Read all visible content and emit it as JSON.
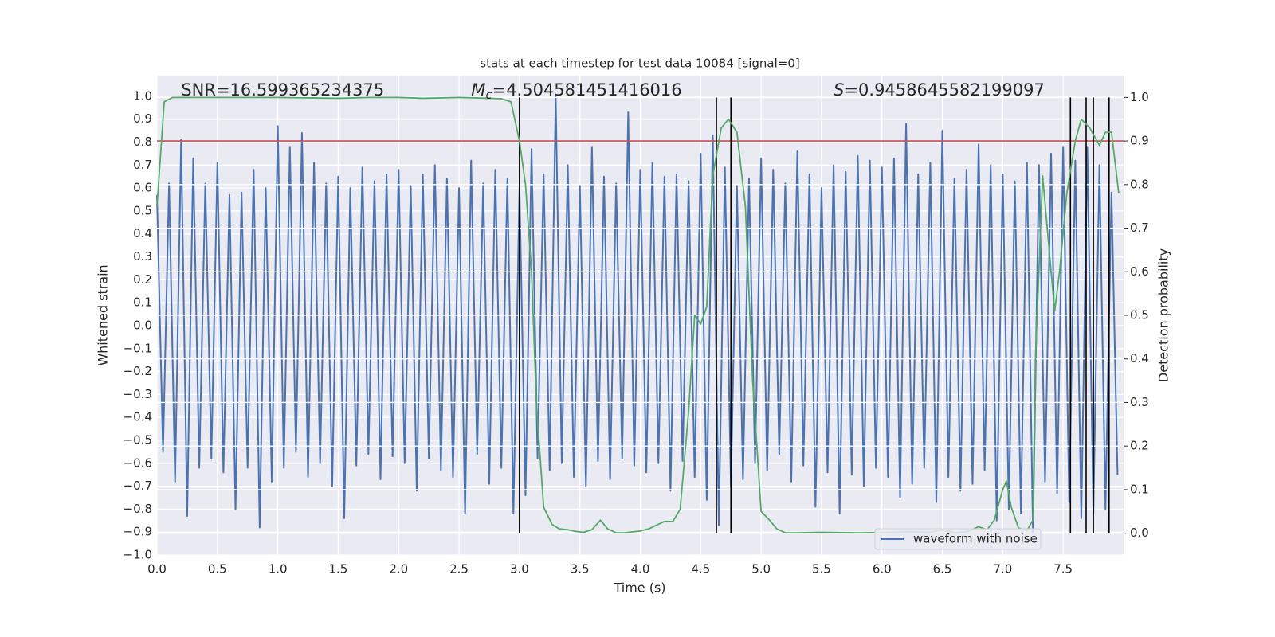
{
  "chart_data": {
    "type": "line",
    "title": "stats at each timestep for test data 10084 [signal=0]",
    "xlabel": "Time (s)",
    "ylabel": "Whitened strain",
    "y2label": "Detection probability",
    "annotations": [
      {
        "x": 0.2,
        "parts": [
          {
            "text": "SNR=16.599365234375"
          }
        ]
      },
      {
        "x": 2.6,
        "parts": [
          {
            "text": "M",
            "style": "italic"
          },
          {
            "text": "c",
            "style": "sub"
          },
          {
            "text": "=4.504581451416016"
          }
        ]
      },
      {
        "x": 5.6,
        "parts": [
          {
            "text": "S",
            "style": "italic"
          },
          {
            "text": "=0.9458645582199097"
          }
        ]
      }
    ],
    "xlim": [
      0,
      8
    ],
    "ylim": [
      -1.0,
      1.09
    ],
    "y2lim": [
      -0.05,
      1.05
    ],
    "xticks": [
      {
        "value": 0,
        "label": "0.0"
      },
      {
        "value": 0.5,
        "label": "0.5"
      },
      {
        "value": 1,
        "label": "1.0"
      },
      {
        "value": 1.5,
        "label": "1.5"
      },
      {
        "value": 2,
        "label": "2.0"
      },
      {
        "value": 2.5,
        "label": "2.5"
      },
      {
        "value": 3,
        "label": "3.0"
      },
      {
        "value": 3.5,
        "label": "3.5"
      },
      {
        "value": 4,
        "label": "4.0"
      },
      {
        "value": 4.5,
        "label": "4.5"
      },
      {
        "value": 5,
        "label": "5.0"
      },
      {
        "value": 5.5,
        "label": "5.5"
      },
      {
        "value": 6,
        "label": "6.0"
      },
      {
        "value": 6.5,
        "label": "6.5"
      },
      {
        "value": 7,
        "label": "7.0"
      },
      {
        "value": 7.5,
        "label": "7.5"
      }
    ],
    "yticks": [
      {
        "value": -1.0,
        "label": "−1.0"
      },
      {
        "value": -0.9,
        "label": "−0.9"
      },
      {
        "value": -0.8,
        "label": "−0.8"
      },
      {
        "value": -0.7,
        "label": "−0.7"
      },
      {
        "value": -0.6,
        "label": "−0.6"
      },
      {
        "value": -0.5,
        "label": "−0.5"
      },
      {
        "value": -0.4,
        "label": "−0.4"
      },
      {
        "value": -0.3,
        "label": "−0.3"
      },
      {
        "value": -0.2,
        "label": "−0.2"
      },
      {
        "value": -0.1,
        "label": "−0.1"
      },
      {
        "value": 0,
        "label": "0.0"
      },
      {
        "value": 0.1,
        "label": "0.1"
      },
      {
        "value": 0.2,
        "label": "0.2"
      },
      {
        "value": 0.3,
        "label": "0.3"
      },
      {
        "value": 0.4,
        "label": "0.4"
      },
      {
        "value": 0.5,
        "label": "0.5"
      },
      {
        "value": 0.6,
        "label": "0.6"
      },
      {
        "value": 0.7,
        "label": "0.7"
      },
      {
        "value": 0.8,
        "label": "0.8"
      },
      {
        "value": 0.9,
        "label": "0.9"
      },
      {
        "value": 1.0,
        "label": "1.0"
      }
    ],
    "y2ticks": [
      {
        "value": 0,
        "label": "0.0"
      },
      {
        "value": 0.1,
        "label": "0.1"
      },
      {
        "value": 0.2,
        "label": "0.2"
      },
      {
        "value": 0.3,
        "label": "0.3"
      },
      {
        "value": 0.4,
        "label": "0.4"
      },
      {
        "value": 0.5,
        "label": "0.5"
      },
      {
        "value": 0.6,
        "label": "0.6"
      },
      {
        "value": 0.7,
        "label": "0.7"
      },
      {
        "value": 0.8,
        "label": "0.8"
      },
      {
        "value": 0.9,
        "label": "0.9"
      },
      {
        "value": 1.0,
        "label": "1.0"
      }
    ],
    "grid": true,
    "legend": "lower right",
    "series": [
      {
        "name": "waveform with noise",
        "color": "#4c72b0",
        "x": [
          0,
          0.05,
          0.1,
          0.15,
          0.2,
          0.25,
          0.3,
          0.35,
          0.4,
          0.45,
          0.5,
          0.55,
          0.6,
          0.65,
          0.7,
          0.75,
          0.8,
          0.85,
          0.9,
          0.95,
          1,
          1.05,
          1.1,
          1.15,
          1.2,
          1.25,
          1.3,
          1.35,
          1.4,
          1.45,
          1.5,
          1.55,
          1.6,
          1.65,
          1.7,
          1.75,
          1.8,
          1.85,
          1.9,
          1.95,
          2,
          2.05,
          2.1,
          2.15,
          2.2,
          2.25,
          2.3,
          2.35,
          2.4,
          2.45,
          2.5,
          2.55,
          2.6,
          2.65,
          2.7,
          2.75,
          2.8,
          2.85,
          2.9,
          2.95,
          3,
          3.05,
          3.1,
          3.15,
          3.2,
          3.25,
          3.3,
          3.35,
          3.4,
          3.45,
          3.5,
          3.55,
          3.6,
          3.65,
          3.7,
          3.75,
          3.8,
          3.85,
          3.9,
          3.95,
          4,
          4.05,
          4.1,
          4.15,
          4.2,
          4.25,
          4.3,
          4.35,
          4.4,
          4.45,
          4.5,
          4.55,
          4.6,
          4.65,
          4.7,
          4.75,
          4.8,
          4.85,
          4.9,
          4.95,
          5,
          5.05,
          5.1,
          5.15,
          5.2,
          5.25,
          5.3,
          5.35,
          5.4,
          5.45,
          5.5,
          5.55,
          5.6,
          5.65,
          5.7,
          5.75,
          5.8,
          5.85,
          5.9,
          5.95,
          6,
          6.05,
          6.1,
          6.15,
          6.2,
          6.25,
          6.3,
          6.35,
          6.4,
          6.45,
          6.5,
          6.55,
          6.6,
          6.65,
          6.7,
          6.75,
          6.8,
          6.85,
          6.9,
          6.95,
          7,
          7.05,
          7.1,
          7.15,
          7.2,
          7.25,
          7.3,
          7.35,
          7.4,
          7.45,
          7.5,
          7.55,
          7.6,
          7.65,
          7.7,
          7.75,
          7.8,
          7.85,
          7.9,
          7.95
        ],
        "values": [
          0.57,
          -0.55,
          0.62,
          -0.68,
          0.81,
          -0.83,
          0.73,
          -0.62,
          0.62,
          -0.58,
          0.71,
          -0.64,
          0.57,
          -0.8,
          0.58,
          -0.62,
          0.68,
          -0.88,
          0.6,
          -0.68,
          0.87,
          -0.62,
          0.78,
          -0.55,
          0.84,
          -0.66,
          0.71,
          -0.6,
          0.62,
          -0.7,
          0.65,
          -0.84,
          0.6,
          -0.61,
          0.69,
          -0.56,
          0.63,
          -0.67,
          0.66,
          -0.57,
          0.68,
          -0.6,
          0.61,
          -0.72,
          0.66,
          -0.58,
          0.7,
          -0.63,
          0.64,
          -0.66,
          0.6,
          -0.82,
          0.72,
          -0.56,
          0.62,
          -0.69,
          0.68,
          -0.62,
          0.64,
          -0.82,
          0.6,
          -0.74,
          0.77,
          -0.58,
          0.66,
          -0.63,
          1.0,
          -0.6,
          0.7,
          -0.66,
          0.61,
          -0.7,
          0.78,
          -0.59,
          0.65,
          -0.67,
          0.62,
          -0.58,
          0.93,
          -0.61,
          0.68,
          -0.64,
          0.71,
          -0.6,
          0.65,
          -0.72,
          0.66,
          -0.59,
          0.63,
          -0.66,
          0.75,
          -0.76,
          0.83,
          -0.87,
          0.69,
          -0.7,
          0.61,
          -0.67,
          0.64,
          -0.6,
          0.73,
          -0.63,
          0.68,
          -0.56,
          0.62,
          -0.68,
          0.76,
          -0.61,
          0.66,
          -0.79,
          0.6,
          -0.64,
          0.7,
          -0.82,
          0.67,
          -0.65,
          0.74,
          -0.7,
          0.72,
          -0.62,
          0.69,
          -0.66,
          0.73,
          -0.75,
          0.88,
          -0.69,
          0.66,
          -0.62,
          0.71,
          -0.77,
          0.85,
          -0.66,
          0.64,
          -0.72,
          0.68,
          -0.69,
          0.79,
          -0.63,
          0.7,
          -0.85,
          0.66,
          -0.8,
          0.63,
          -0.82,
          0.71,
          -0.9,
          0.7,
          -0.68,
          0.75,
          -0.73,
          0.78,
          -0.77,
          0.72,
          -0.84,
          0.78,
          -0.82,
          0.7,
          -0.8,
          0.58,
          -0.65
        ]
      },
      {
        "color": "#55a868",
        "axis": "y2",
        "x": [
          0,
          0.06,
          0.13,
          0.5,
          1.0,
          1.5,
          1.75,
          2.0,
          2.2,
          2.5,
          2.75,
          2.85,
          2.93,
          3.0,
          3.05,
          3.1,
          3.14,
          3.2,
          3.27,
          3.33,
          3.4,
          3.47,
          3.53,
          3.6,
          3.67,
          3.73,
          3.8,
          3.87,
          3.93,
          4.0,
          4.07,
          4.13,
          4.2,
          4.27,
          4.33,
          4.4,
          4.45,
          4.5,
          4.55,
          4.6,
          4.67,
          4.73,
          4.8,
          4.87,
          4.93,
          5.0,
          5.07,
          5.13,
          5.2,
          5.3,
          5.5,
          5.8,
          6.1,
          6.2,
          6.4,
          6.5,
          6.6,
          6.7,
          6.8,
          6.87,
          6.93,
          7.0,
          7.03,
          7.07,
          7.13,
          7.2,
          7.25,
          7.27,
          7.33,
          7.4,
          7.43,
          7.47,
          7.53,
          7.6,
          7.65,
          7.72,
          7.8,
          7.85,
          7.9,
          7.96
        ],
        "values": [
          0.75,
          0.99,
          1.0,
          1.0,
          1.0,
          0.998,
          1.0,
          1.0,
          0.998,
          1.0,
          0.998,
          0.997,
          0.99,
          0.9,
          0.8,
          0.6,
          0.3,
          0.06,
          0.02,
          0.01,
          0.008,
          0.004,
          0.002,
          0.008,
          0.03,
          0.01,
          0.001,
          0.001,
          0.003,
          0.005,
          0.01,
          0.018,
          0.027,
          0.027,
          0.055,
          0.28,
          0.5,
          0.48,
          0.52,
          0.82,
          0.93,
          0.95,
          0.92,
          0.75,
          0.35,
          0.05,
          0.03,
          0.01,
          0.001,
          0.001,
          0.002,
          0.001,
          0.002,
          0.003,
          0.002,
          0.008,
          0.001,
          0.003,
          0.015,
          0.008,
          0.03,
          0.1,
          0.12,
          0.06,
          0.012,
          0.006,
          0.03,
          0.4,
          0.82,
          0.6,
          0.51,
          0.6,
          0.78,
          0.9,
          0.95,
          0.93,
          0.89,
          0.92,
          0.92,
          0.78
        ]
      }
    ],
    "hline": {
      "value": 0.9,
      "axis": "y2",
      "color": "#c44e52"
    },
    "vlines": {
      "x": [
        3.0,
        4.63,
        4.75,
        7.56,
        7.69,
        7.75,
        7.88
      ],
      "ymin": 0,
      "ymax": 1,
      "axis": "y2",
      "color": "#000000"
    }
  }
}
